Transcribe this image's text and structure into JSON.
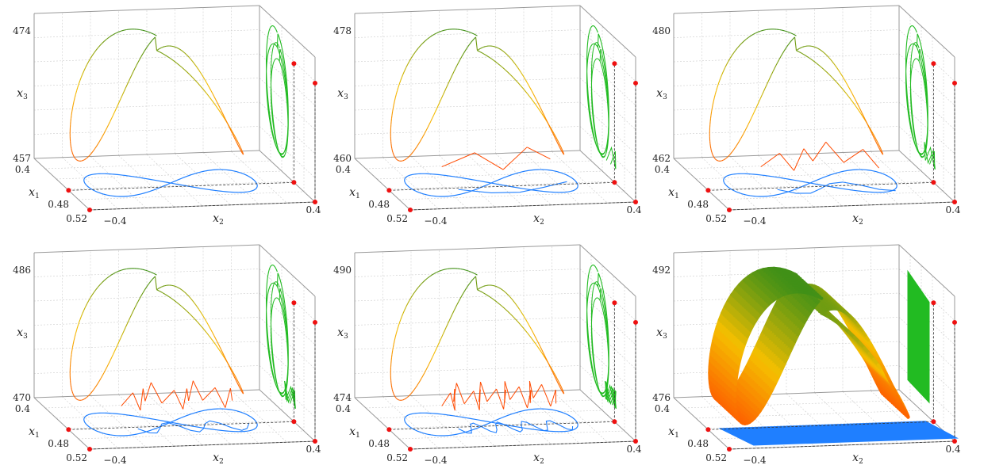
{
  "colors": {
    "high": "#2b8a1a",
    "mid": "#f5bf00",
    "low": "#ff4a00",
    "floor_projection": "#1f7fff",
    "wall_projection": "#22bb22",
    "marker": "#ee1111",
    "box": "#999999",
    "grid": "#cccccc"
  },
  "chart_data": [
    {
      "type": "line",
      "panel": 1,
      "style": "curve",
      "zigzag_teeth": 0,
      "xlabel": "x2",
      "ylabel": "x1",
      "zlabel": "x3",
      "x_ticks": [
        "−0.4",
        "0.4"
      ],
      "y_ticks": [
        "0.4",
        "0.48",
        "0.52"
      ],
      "z_ticks": [
        "474",
        "457"
      ],
      "zlim": [
        457,
        474
      ],
      "xlim": [
        -0.4,
        0.4
      ],
      "ylim": [
        0.4,
        0.52
      ]
    },
    {
      "type": "line",
      "panel": 2,
      "style": "curve",
      "zigzag_teeth": 2,
      "xlabel": "x2",
      "ylabel": "x1",
      "zlabel": "x3",
      "x_ticks": [
        "−0.4",
        "0.4"
      ],
      "y_ticks": [
        "0.4",
        "0.48",
        "0.52"
      ],
      "z_ticks": [
        "478",
        "460"
      ],
      "zlim": [
        460,
        478
      ],
      "xlim": [
        -0.4,
        0.4
      ],
      "ylim": [
        0.4,
        0.52
      ]
    },
    {
      "type": "line",
      "panel": 3,
      "style": "curve",
      "zigzag_teeth": 4,
      "xlabel": "x2",
      "ylabel": "x1",
      "zlabel": "x3",
      "x_ticks": [
        "−0.4",
        "0.4"
      ],
      "y_ticks": [
        "0.4",
        "0.48",
        "0.52"
      ],
      "z_ticks": [
        "480",
        "462"
      ],
      "zlim": [
        462,
        480
      ],
      "xlim": [
        -0.4,
        0.4
      ],
      "ylim": [
        0.4,
        0.52
      ]
    },
    {
      "type": "line",
      "panel": 4,
      "style": "curve",
      "zigzag_teeth": 8,
      "xlabel": "x2",
      "ylabel": "x1",
      "zlabel": "x3",
      "x_ticks": [
        "−0.4",
        "0.4"
      ],
      "y_ticks": [
        "0.4",
        "0.48",
        "0.52"
      ],
      "z_ticks": [
        "486",
        "470"
      ],
      "zlim": [
        470,
        486
      ],
      "xlim": [
        -0.4,
        0.4
      ],
      "ylim": [
        0.4,
        0.52
      ]
    },
    {
      "type": "line",
      "panel": 5,
      "style": "curve",
      "zigzag_teeth": 14,
      "xlabel": "x2",
      "ylabel": "x1",
      "zlabel": "x3",
      "x_ticks": [
        "−0.4",
        "0.4"
      ],
      "y_ticks": [
        "0.4",
        "0.48",
        "0.52"
      ],
      "z_ticks": [
        "490",
        "474"
      ],
      "zlim": [
        474,
        490
      ],
      "xlim": [
        -0.4,
        0.4
      ],
      "ylim": [
        0.4,
        0.52
      ]
    },
    {
      "type": "line",
      "panel": 6,
      "style": "ribbon",
      "zigzag_teeth": 0,
      "xlabel": "x2",
      "ylabel": "x1",
      "zlabel": "x3",
      "x_ticks": [
        "−0.4",
        "0.4"
      ],
      "y_ticks": [
        "0.4",
        "0.48",
        "0.52"
      ],
      "z_ticks": [
        "492",
        "476"
      ],
      "zlim": [
        476,
        492
      ],
      "xlim": [
        -0.4,
        0.4
      ],
      "ylim": [
        0.4,
        0.52
      ]
    }
  ]
}
